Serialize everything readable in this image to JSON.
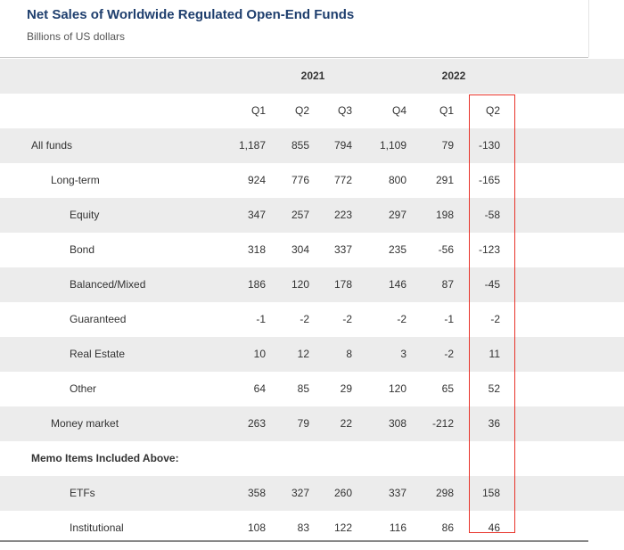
{
  "chart_data": {
    "type": "table",
    "title": "Net Sales of Worldwide Regulated Open-End Funds",
    "subtitle": "Billions of US dollars",
    "year_groups": [
      {
        "year": "2021",
        "quarters": [
          "Q1",
          "Q2",
          "Q3",
          "Q4"
        ]
      },
      {
        "year": "2022",
        "quarters": [
          "Q1",
          "Q2"
        ]
      }
    ],
    "columns": [
      "Q1",
      "Q2",
      "Q3",
      "Q4",
      "Q1",
      "Q2"
    ],
    "highlighted_column": "2022 Q2",
    "highlight_color": "#e8332a",
    "rows": [
      {
        "label": "All funds",
        "level": 0,
        "values": [
          "1,187",
          "855",
          "794",
          "1,109",
          "79",
          "-130"
        ]
      },
      {
        "label": "Long-term",
        "level": 1,
        "values": [
          "924",
          "776",
          "772",
          "800",
          "291",
          "-165"
        ]
      },
      {
        "label": "Equity",
        "level": 2,
        "values": [
          "347",
          "257",
          "223",
          "297",
          "198",
          "-58"
        ]
      },
      {
        "label": "Bond",
        "level": 2,
        "values": [
          "318",
          "304",
          "337",
          "235",
          "-56",
          "-123"
        ]
      },
      {
        "label": "Balanced/Mixed",
        "level": 2,
        "values": [
          "186",
          "120",
          "178",
          "146",
          "87",
          "-45"
        ]
      },
      {
        "label": "Guaranteed",
        "level": 2,
        "values": [
          "-1",
          "-2",
          "-2",
          "-2",
          "-1",
          "-2"
        ]
      },
      {
        "label": "Real Estate",
        "level": 2,
        "values": [
          "10",
          "12",
          "8",
          "3",
          "-2",
          "11"
        ]
      },
      {
        "label": "Other",
        "level": 2,
        "values": [
          "64",
          "85",
          "29",
          "120",
          "65",
          "52"
        ]
      },
      {
        "label": "Money market",
        "level": 1,
        "values": [
          "263",
          "79",
          "22",
          "308",
          "-212",
          "36"
        ]
      },
      {
        "label": "Memo Items Included Above:",
        "level": 0,
        "bold": true,
        "values": [
          "",
          "",
          "",
          "",
          "",
          ""
        ]
      },
      {
        "label": "ETFs",
        "level": 2,
        "values": [
          "358",
          "327",
          "260",
          "337",
          "298",
          "158"
        ]
      },
      {
        "label": "Institutional",
        "level": 2,
        "values": [
          "108",
          "83",
          "122",
          "116",
          "86",
          "46"
        ]
      }
    ]
  }
}
